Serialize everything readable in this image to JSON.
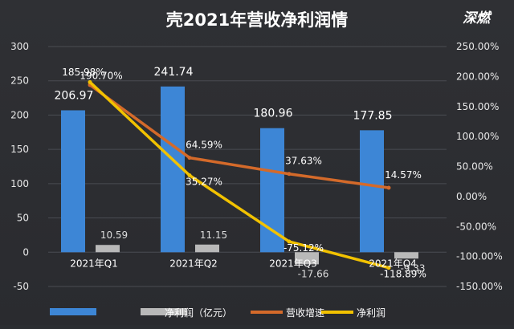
{
  "chart_data": {
    "type": "bar",
    "title": "壳2021年营收净利润情",
    "watermark": "深燃",
    "categories": [
      "2021年Q1",
      "2021年Q2",
      "2021年Q3",
      "2021年Q4"
    ],
    "series": [
      {
        "name": "",
        "kind": "bar",
        "axis": "left",
        "color": "#3d86d6",
        "values": [
          206.97,
          241.74,
          180.96,
          177.85
        ],
        "labels": [
          "206.97",
          "241.74",
          "180.96",
          "177.85"
        ]
      },
      {
        "name": "净利润（亿元）",
        "kind": "bar",
        "axis": "left",
        "color": "#b9b9b9",
        "values": [
          10.59,
          11.15,
          -17.66,
          -9.33
        ],
        "labels": [
          "10.59",
          "11.15",
          "-17.66",
          "-9.33"
        ]
      },
      {
        "name": "营收增速",
        "kind": "line",
        "axis": "right",
        "color": "#d46a2a",
        "values": [
          185.98,
          64.59,
          37.63,
          14.57
        ],
        "labels": [
          "185.98%",
          "64.59%",
          "37.63%",
          "14.57%"
        ]
      },
      {
        "name": "净利润",
        "kind": "line",
        "axis": "right",
        "color": "#f2c200",
        "values": [
          190.7,
          35.27,
          -75.12,
          -118.89
        ],
        "labels": [
          "190.70%",
          "35.27%",
          "-75.12%",
          "-118.89%"
        ]
      }
    ],
    "left_axis": {
      "min": -50,
      "max": 300,
      "ticks": [
        -50,
        0,
        50,
        100,
        150,
        200,
        250,
        300
      ]
    },
    "right_axis": {
      "min": -150,
      "max": 250,
      "ticks": [
        "-150.00%",
        "-100.00%",
        "-50.00%",
        "0.00%",
        "50.00%",
        "100.00%",
        "150.00%",
        "200.00%",
        "250.00%"
      ]
    },
    "legend_position": "bottom",
    "grid": true
  }
}
